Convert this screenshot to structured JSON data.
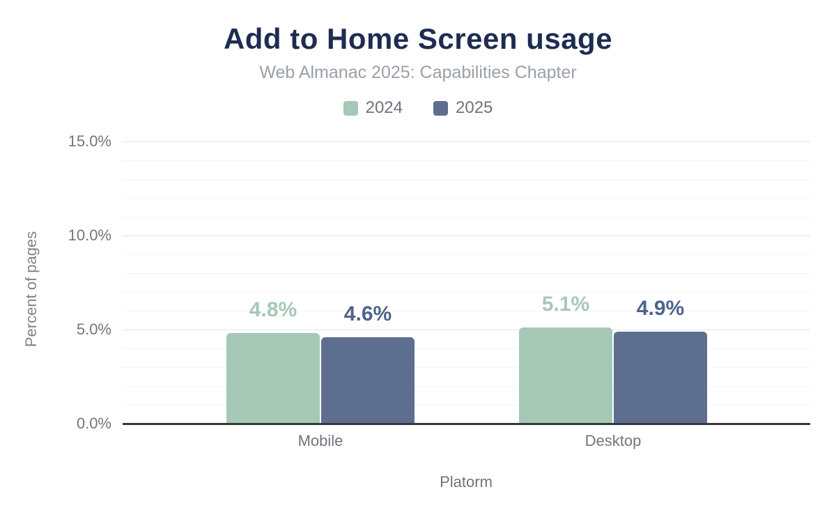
{
  "header": {
    "title": "Add to Home Screen usage",
    "subtitle": "Web Almanac 2025: Capabilities Chapter"
  },
  "legend": {
    "items": [
      {
        "label": "2024",
        "color": "#a5c9b6"
      },
      {
        "label": "2025",
        "color": "#5e6e8e"
      }
    ]
  },
  "chart_data": {
    "type": "bar",
    "title": "Add to Home Screen usage",
    "subtitle": "Web Almanac 2025: Capabilities Chapter",
    "categories": [
      "Mobile",
      "Desktop"
    ],
    "series": [
      {
        "name": "2024",
        "values": [
          4.8,
          5.1
        ],
        "value_labels": [
          "4.8%",
          "5.1%"
        ],
        "color": "#a5c9b6",
        "label_color": "#a5c9b6"
      },
      {
        "name": "2025",
        "values": [
          4.6,
          4.9
        ],
        "value_labels": [
          "4.6%",
          "4.9%"
        ],
        "color": "#5e6e8e",
        "label_color": "#4d648c"
      }
    ],
    "xlabel": "Platorm",
    "ylabel": "Percent of pages",
    "ylim": [
      0,
      15
    ],
    "yticks": [
      {
        "value": 0,
        "label": "0.0%"
      },
      {
        "value": 5,
        "label": "5.0%"
      },
      {
        "value": 10,
        "label": "10.0%"
      },
      {
        "value": 15,
        "label": "15.0%"
      }
    ],
    "grid": {
      "minor_step": 1,
      "major_step": 5,
      "orientation": "horizontal"
    },
    "legend_position": "top",
    "colors": {
      "title": "#1e2c52",
      "subtitle": "#9aa0a8",
      "axis_text": "#70757d",
      "axis_line": "#36373b",
      "gridline_minor": "#f4f4f6",
      "gridline_major": "#e2e3e7",
      "background": "#ffffff"
    }
  }
}
